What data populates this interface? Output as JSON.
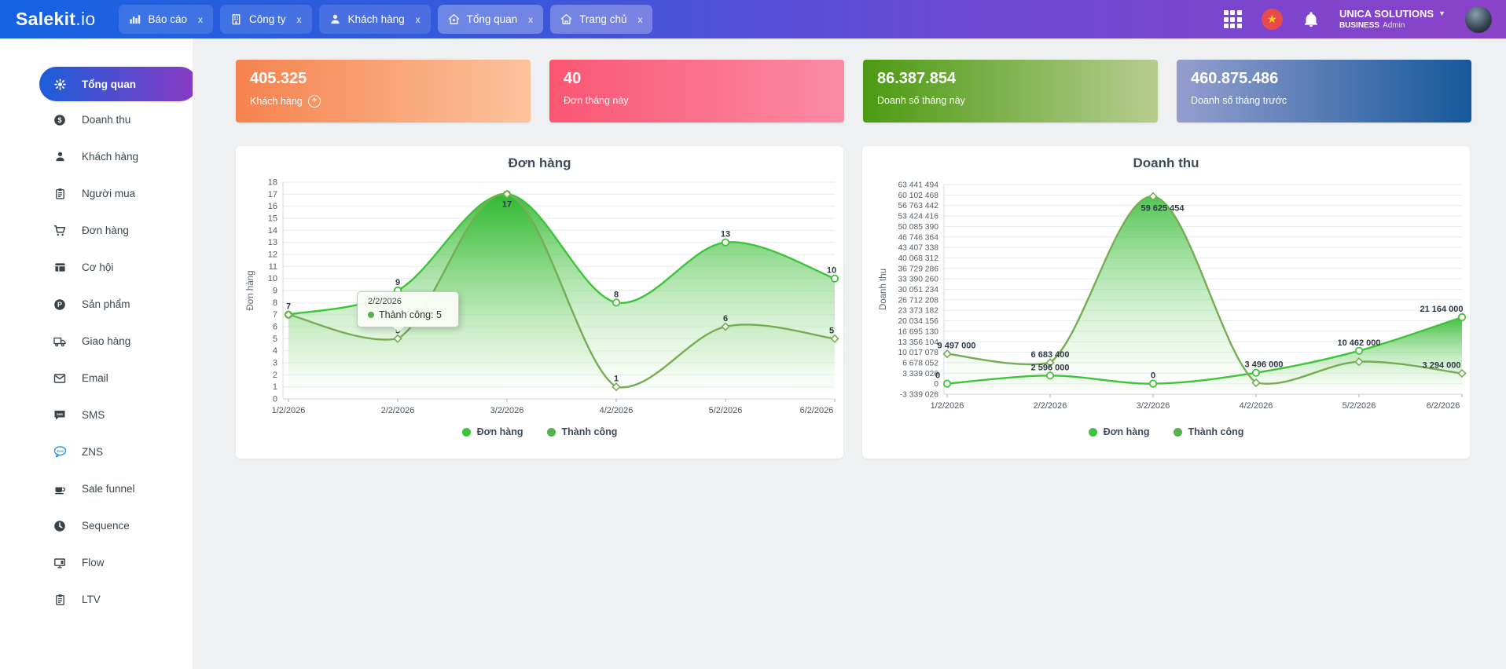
{
  "topbar": {
    "logo": {
      "brand": "Salekit",
      "suffix": ".io"
    },
    "tabs": [
      {
        "id": "bao-cao",
        "label": "Báo cáo",
        "icon": "bar-chart-icon",
        "close_label": "x",
        "highlighted": false
      },
      {
        "id": "cong-ty",
        "label": "Công ty",
        "icon": "building-icon",
        "close_label": "x",
        "highlighted": false
      },
      {
        "id": "khach-hang",
        "label": "Khách hàng",
        "icon": "user-icon",
        "close_label": "x",
        "highlighted": false
      },
      {
        "id": "tong-quan",
        "label": "Tổng quan",
        "icon": "home-overview-icon",
        "close_label": "x",
        "highlighted": true
      },
      {
        "id": "trang-chu",
        "label": "Trang chủ",
        "icon": "home-icon",
        "close_label": "x",
        "highlighted": true
      }
    ],
    "account": {
      "name": "UNICA SOLUTIONS",
      "badge": "BUSINESS",
      "role": "Admin"
    }
  },
  "sidebar": {
    "items": [
      {
        "id": "tong-quan",
        "label": "Tổng quan",
        "icon": "gear-icon",
        "active": true
      },
      {
        "id": "doanh-thu",
        "label": "Doanh thu",
        "icon": "dollar-circle-icon",
        "active": false
      },
      {
        "id": "khach-hang",
        "label": "Khách hàng",
        "icon": "user-icon",
        "active": false
      },
      {
        "id": "nguoi-mua",
        "label": "Người mua",
        "icon": "clipboard-icon",
        "active": false
      },
      {
        "id": "don-hang",
        "label": "Đơn hàng",
        "icon": "cart-icon",
        "active": false
      },
      {
        "id": "co-hoi",
        "label": "Cơ hội",
        "icon": "table-icon",
        "active": false
      },
      {
        "id": "san-pham",
        "label": "Sản phẩm",
        "icon": "product-p-icon",
        "active": false
      },
      {
        "id": "giao-hang",
        "label": "Giao hàng",
        "icon": "truck-icon",
        "active": false
      },
      {
        "id": "email",
        "label": "Email",
        "icon": "mail-icon",
        "active": false
      },
      {
        "id": "sms",
        "label": "SMS",
        "icon": "sms-bubble-icon",
        "active": false
      },
      {
        "id": "zns",
        "label": "ZNS",
        "icon": "zns-bubble-icon",
        "active": false
      },
      {
        "id": "sale-funnel",
        "label": "Sale funnel",
        "icon": "cup-icon",
        "active": false
      },
      {
        "id": "sequence",
        "label": "Sequence",
        "icon": "clock-icon",
        "active": false
      },
      {
        "id": "flow",
        "label": "Flow",
        "icon": "monitor-icon",
        "active": false
      },
      {
        "id": "ltv",
        "label": "LTV",
        "icon": "clipboard-icon",
        "active": false
      }
    ]
  },
  "cards": [
    {
      "id": "khach-hang",
      "value": "405.325",
      "label": "Khách hàng",
      "has_plus": true,
      "gradient_from": "#f5824e",
      "gradient_to": "#fcc39d"
    },
    {
      "id": "don-thang-nay",
      "value": "40",
      "label": "Đơn tháng này",
      "has_plus": false,
      "gradient_from": "#fa5672",
      "gradient_to": "#fb8ba4"
    },
    {
      "id": "doanh-so-thang-nay",
      "value": "86.387.854",
      "label": "Doanh số tháng này",
      "has_plus": false,
      "gradient_from": "#4c9a12",
      "gradient_to": "#b6cd90"
    },
    {
      "id": "doanh-so-thang-truoc",
      "value": "460.875.486",
      "label": "Doanh số tháng trước",
      "has_plus": false,
      "gradient_from": "#959ecd",
      "gradient_to": "#15589b"
    }
  ],
  "chart_data": [
    {
      "type": "area",
      "id": "don-hang",
      "title": "Đơn hàng",
      "ylabel": "Đơn hàng",
      "xlabel": "",
      "grid": true,
      "legend_position": "bottom",
      "categories": [
        "1/2/2026",
        "2/2/2026",
        "3/2/2026",
        "4/2/2026",
        "5/2/2026",
        "6/2/2026"
      ],
      "ylim": [
        0,
        18
      ],
      "yticks": [
        "18",
        "17",
        "16",
        "15",
        "14",
        "13",
        "12",
        "11",
        "10",
        "9",
        "8",
        "7",
        "6",
        "5",
        "4",
        "3",
        "2",
        "1",
        "0"
      ],
      "series": [
        {
          "name": "Đơn hàng",
          "marker": "circle",
          "color": "#3ec43b",
          "legend_color": "#3cc33c",
          "values": [
            7,
            9,
            17,
            8,
            13,
            10
          ],
          "labels": [
            "7",
            "9",
            "17",
            "8",
            "13",
            "10"
          ],
          "ldx": [
            0,
            0,
            0,
            0,
            0,
            -4
          ],
          "ldy": [
            0,
            0,
            23,
            0,
            0,
            0
          ]
        },
        {
          "name": "Thành công",
          "marker": "diamond",
          "color": "#76ad54",
          "legend_color": "#55b14c",
          "values": [
            7,
            5,
            17,
            1,
            6,
            5
          ],
          "labels": [
            "",
            "5",
            "",
            "1",
            "6",
            "5"
          ],
          "ldx": [
            0,
            0,
            0,
            0,
            0,
            -4
          ],
          "ldy": [
            0,
            0,
            0,
            0,
            0,
            0
          ]
        }
      ],
      "tooltip": {
        "date": "2/2/2026",
        "label": "Thành công: 5"
      }
    },
    {
      "type": "area",
      "id": "doanh-thu",
      "title": "Doanh thu",
      "ylabel": "Doanh thu",
      "xlabel": "",
      "grid": true,
      "legend_position": "bottom",
      "categories": [
        "1/2/2026",
        "2/2/2026",
        "3/2/2026",
        "4/2/2026",
        "5/2/2026",
        "6/2/2026"
      ],
      "ylim": [
        -3339026,
        63441494
      ],
      "yticks": [
        "63 441 494",
        "60 102 468",
        "56 763 442",
        "53 424 416",
        "50 085 390",
        "46 746 364",
        "43 407 338",
        "40 068 312",
        "36 729 286",
        "33 390 260",
        "30 051 234",
        "26 712 208",
        "23 373 182",
        "20 034 156",
        "16 695 130",
        "13 356 104",
        "10 017 078",
        "6 678 052",
        "3 339 026",
        "0",
        "-3 339 026"
      ],
      "series": [
        {
          "name": "Đơn hàng",
          "marker": "circle",
          "color": "#3ec43b",
          "legend_color": "#3cc33c",
          "values": [
            0,
            2596000,
            0,
            3496000,
            10462000,
            21164000
          ],
          "labels": [
            "0",
            "2 596 000",
            "0",
            "3 496 000",
            "10 462 000",
            "21 164 000"
          ],
          "ldx": [
            -12,
            0,
            0,
            10,
            0,
            -26
          ],
          "ldy": [
            0,
            0,
            0,
            0,
            0,
            0
          ]
        },
        {
          "name": "Thành công",
          "marker": "diamond",
          "color": "#76ad54",
          "legend_color": "#55b14c",
          "values": [
            9497000,
            6683400,
            59625454,
            288000,
            7000000,
            3294000
          ],
          "labels": [
            "9 497 000",
            "6 683 400",
            "59 625 454",
            "",
            "",
            "3 294 000"
          ],
          "ldx": [
            12,
            0,
            12,
            0,
            0,
            -26
          ],
          "ldy": [
            0,
            0,
            25,
            0,
            0,
            0
          ]
        }
      ]
    }
  ]
}
